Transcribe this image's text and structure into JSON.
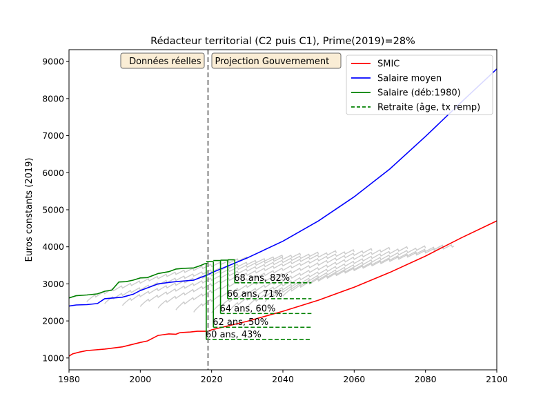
{
  "chart_data": {
    "type": "line",
    "title": "Rédacteur territorial (C2 puis C1), Prime(2019)=28%",
    "xlabel": "",
    "ylabel": "Euros constants (2019)",
    "xlim": [
      1980,
      2100
    ],
    "ylim": [
      680,
      9320
    ],
    "xticks": [
      1980,
      2000,
      2020,
      2040,
      2060,
      2080,
      2100
    ],
    "yticks": [
      1000,
      2000,
      3000,
      4000,
      5000,
      6000,
      7000,
      8000,
      9000
    ],
    "grid": false,
    "legend_position": "top-right",
    "divider_year": 2019,
    "region_labels": {
      "left": "Données réelles",
      "right": "Projection Gouvernement"
    },
    "colors": {
      "smic": "#ff0000",
      "salaire_moyen": "#0000ff",
      "salaire": "#008000",
      "retraite": "#008000",
      "careers": "#cccccc",
      "divider": "#808080"
    },
    "series": [
      {
        "name": "SMIC",
        "key": "smic",
        "x": [
          1980,
          1981,
          1983,
          1985,
          1990,
          1995,
          2000,
          2002,
          2005,
          2008,
          2010,
          2011,
          2012,
          2014,
          2016,
          2019,
          2020,
          2030,
          2040,
          2050,
          2060,
          2070,
          2080,
          2090,
          2100
        ],
        "y": [
          1050,
          1110,
          1160,
          1200,
          1240,
          1300,
          1420,
          1460,
          1610,
          1650,
          1640,
          1680,
          1690,
          1700,
          1720,
          1720,
          1760,
          1990,
          2260,
          2560,
          2910,
          3310,
          3750,
          4240,
          4700
        ]
      },
      {
        "name": "Salaire moyen",
        "key": "salaire_moyen",
        "x": [
          1980,
          1982,
          1985,
          1988,
          1990,
          1995,
          1998,
          2000,
          2005,
          2008,
          2010,
          2015,
          2019,
          2020,
          2030,
          2040,
          2050,
          2060,
          2070,
          2080,
          2090,
          2100
        ],
        "y": [
          2400,
          2430,
          2440,
          2470,
          2600,
          2640,
          2720,
          2820,
          3000,
          3040,
          3060,
          3100,
          3250,
          3300,
          3700,
          4150,
          4700,
          5350,
          6100,
          6980,
          7900,
          8800
        ]
      },
      {
        "name": "Salaire (déb:1980)",
        "key": "salaire",
        "x": [
          1980,
          1982,
          1985,
          1988,
          1990,
          1992,
          1994,
          1996,
          1998,
          2000,
          2002,
          2005,
          2008,
          2010,
          2012,
          2015,
          2017,
          2018,
          2019
        ],
        "y": [
          2620,
          2680,
          2700,
          2730,
          2800,
          2830,
          3050,
          3060,
          3100,
          3160,
          3170,
          3280,
          3330,
          3400,
          3420,
          3430,
          3500,
          3540,
          3560
        ]
      }
    ],
    "retirement_scenarios": [
      {
        "label": "60 ans, 43%",
        "year": 2018.5,
        "level": 1500,
        "salary_top": 3560
      },
      {
        "label": "62 ans, 50%",
        "year": 2020.5,
        "level": 1830,
        "salary_top": 3600
      },
      {
        "label": "64 ans, 60%",
        "year": 2022.5,
        "level": 2200,
        "salary_top": 3630
      },
      {
        "label": "66 ans, 71%",
        "year": 2024.5,
        "level": 2600,
        "salary_top": 3640
      },
      {
        "label": "68 ans, 82%",
        "year": 2026.5,
        "level": 3030,
        "salary_top": 3650
      }
    ],
    "retirement_line_end": 2048,
    "retraite_legend": "Retraite (âge, tx remp)",
    "career_curves": [
      {
        "start": 1985,
        "y0": 2550,
        "end": 2030,
        "y1": 3700
      },
      {
        "start": 1990,
        "y0": 2500,
        "end": 2040,
        "y1": 3750
      },
      {
        "start": 1995,
        "y0": 2450,
        "end": 2045,
        "y1": 3800
      },
      {
        "start": 2000,
        "y0": 2420,
        "end": 2050,
        "y1": 3830
      },
      {
        "start": 2005,
        "y0": 2380,
        "end": 2055,
        "y1": 3870
      },
      {
        "start": 2010,
        "y0": 2330,
        "end": 2060,
        "y1": 3900
      },
      {
        "start": 2015,
        "y0": 2270,
        "end": 2065,
        "y1": 3930
      },
      {
        "start": 2020,
        "y0": 2250,
        "end": 2070,
        "y1": 3960
      },
      {
        "start": 2025,
        "y0": 2300,
        "end": 2075,
        "y1": 3980
      },
      {
        "start": 2030,
        "y0": 2400,
        "end": 2080,
        "y1": 4000
      },
      {
        "start": 2035,
        "y0": 2550,
        "end": 2085,
        "y1": 4020
      },
      {
        "start": 2040,
        "y0": 2700,
        "end": 2088,
        "y1": 4040
      }
    ]
  }
}
